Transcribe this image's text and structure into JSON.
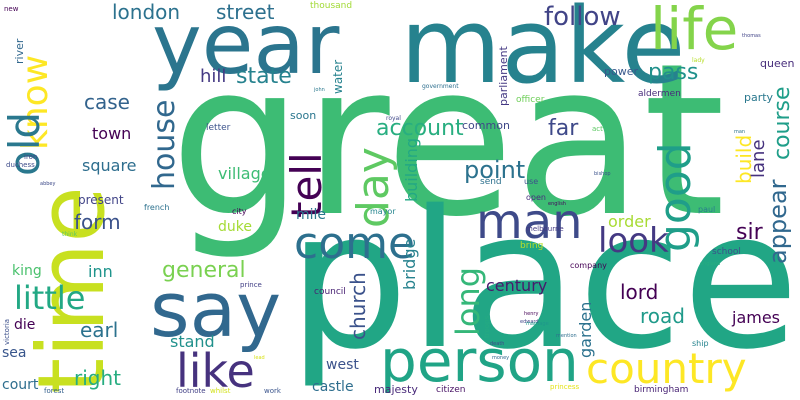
{
  "words": [
    {
      "text": "great",
      "color": "#3dbc74"
    },
    {
      "text": "place",
      "color": "#21a685"
    },
    {
      "text": "make",
      "color": "#26828e"
    },
    {
      "text": "year",
      "color": "#2b758e"
    },
    {
      "text": "time",
      "color": "#c8e020"
    },
    {
      "text": "say",
      "color": "#31688e"
    },
    {
      "text": "person",
      "color": "#20a486"
    },
    {
      "text": "life",
      "color": "#84d44b"
    },
    {
      "text": "country",
      "color": "#fde725"
    },
    {
      "text": "man",
      "color": "#3e4a89"
    },
    {
      "text": "like",
      "color": "#46327e"
    },
    {
      "text": "day",
      "color": "#5ec962"
    },
    {
      "text": "come",
      "color": "#2d708e"
    },
    {
      "text": "tell",
      "color": "#440154"
    },
    {
      "text": "good",
      "color": "#1f9e89"
    },
    {
      "text": "know",
      "color": "#fde725"
    },
    {
      "text": "old",
      "color": "#2a788e"
    },
    {
      "text": "little",
      "color": "#22a884"
    },
    {
      "text": "house",
      "color": "#31688e"
    },
    {
      "text": "look",
      "color": "#443983"
    },
    {
      "text": "long",
      "color": "#35b779"
    },
    {
      "text": "follow",
      "color": "#414487"
    },
    {
      "text": "account",
      "color": "#28ae80"
    },
    {
      "text": "general",
      "color": "#7ad151"
    },
    {
      "text": "point",
      "color": "#2c728e"
    },
    {
      "text": "right",
      "color": "#27ad81"
    },
    {
      "text": "appear",
      "color": "#31688e"
    },
    {
      "text": "course",
      "color": "#1f9e89"
    },
    {
      "text": "pass",
      "color": "#21918c"
    },
    {
      "text": "state",
      "color": "#26828e"
    },
    {
      "text": "church",
      "color": "#3b528b"
    },
    {
      "text": "road",
      "color": "#1f9a8a"
    },
    {
      "text": "sir",
      "color": "#440154"
    },
    {
      "text": "london",
      "color": "#2c728e"
    },
    {
      "text": "street",
      "color": "#2d708e"
    },
    {
      "text": "case",
      "color": "#33638d"
    },
    {
      "text": "far",
      "color": "#3e4989"
    },
    {
      "text": "build",
      "color": "#fde725"
    },
    {
      "text": "form",
      "color": "#3b528b"
    },
    {
      "text": "lord",
      "color": "#440154"
    },
    {
      "text": "earl",
      "color": "#2c728e"
    },
    {
      "text": "lane",
      "color": "#46327e"
    },
    {
      "text": "hill",
      "color": "#443983"
    },
    {
      "text": "town",
      "color": "#440154"
    },
    {
      "text": "square",
      "color": "#2e6e8e"
    },
    {
      "text": "village",
      "color": "#3dbc74"
    },
    {
      "text": "building",
      "color": "#22a884"
    },
    {
      "text": "bridge",
      "color": "#26828e"
    },
    {
      "text": "inn",
      "color": "#1f948c"
    },
    {
      "text": "james",
      "color": "#440154"
    },
    {
      "text": "century",
      "color": "#481a6c"
    },
    {
      "text": "garden",
      "color": "#2c728e"
    },
    {
      "text": "order",
      "color": "#a8db34"
    },
    {
      "text": "stand",
      "color": "#21918c"
    },
    {
      "text": "mile",
      "color": "#2a788e"
    },
    {
      "text": "king",
      "color": "#4ac16d"
    },
    {
      "text": "die",
      "color": "#440154"
    },
    {
      "text": "castle",
      "color": "#2e6e8e"
    },
    {
      "text": "west",
      "color": "#3b528b"
    },
    {
      "text": "water",
      "color": "#26828e"
    },
    {
      "text": "duke",
      "color": "#a5db36"
    },
    {
      "text": "sea",
      "color": "#39568c"
    },
    {
      "text": "court",
      "color": "#2e6e8e"
    },
    {
      "text": "common",
      "color": "#3f4788"
    },
    {
      "text": "parliament",
      "color": "#443983"
    },
    {
      "text": "present",
      "color": "#414487"
    },
    {
      "text": "queen",
      "color": "#472d7b"
    },
    {
      "text": "party",
      "color": "#2a788e"
    },
    {
      "text": "power",
      "color": "#38588c"
    },
    {
      "text": "soon",
      "color": "#2a768e"
    },
    {
      "text": "majesty",
      "color": "#482979"
    },
    {
      "text": "river",
      "color": "#30678d"
    },
    {
      "text": "thousand",
      "color": "#a2da37"
    },
    {
      "text": "aldermen",
      "color": "#472c7a"
    },
    {
      "text": "council",
      "color": "#482173"
    },
    {
      "text": "birmingham",
      "color": "#482374"
    },
    {
      "text": "citizen",
      "color": "#471164"
    },
    {
      "text": "bring",
      "color": "#bade28"
    },
    {
      "text": "school",
      "color": "#3b518b"
    },
    {
      "text": "officer",
      "color": "#6ece58"
    },
    {
      "text": "letter",
      "color": "#3b528b"
    },
    {
      "text": "send",
      "color": "#2d718e"
    },
    {
      "text": "use",
      "color": "#3c508b"
    },
    {
      "text": "open",
      "color": "#472f7d"
    },
    {
      "text": "mayor",
      "color": "#25858e"
    },
    {
      "text": "city",
      "color": "#440154"
    },
    {
      "text": "company",
      "color": "#440154"
    },
    {
      "text": "melbourne",
      "color": "#443a83"
    },
    {
      "text": "paul",
      "color": "#287d8e"
    },
    {
      "text": "prince",
      "color": "#424086"
    },
    {
      "text": "footnote",
      "color": "#424086"
    },
    {
      "text": "work",
      "color": "#3a548c"
    },
    {
      "text": "forest",
      "color": "#34608d"
    },
    {
      "text": "whilst",
      "color": "#d2e21b"
    },
    {
      "text": "ship",
      "color": "#25838e"
    },
    {
      "text": "princess",
      "color": "#e4e419"
    },
    {
      "text": "iron",
      "color": "#414487"
    },
    {
      "text": "duchess",
      "color": "#3e4c8a"
    },
    {
      "text": "french",
      "color": "#2c718e"
    },
    {
      "text": "new",
      "color": "#440154"
    },
    {
      "text": "victoria",
      "color": "#3c508b"
    },
    {
      "text": "troops",
      "color": "#25ab82"
    },
    {
      "text": "government",
      "color": "#2e6f8e"
    },
    {
      "text": "lady",
      "color": "#b8de29"
    },
    {
      "text": "royal",
      "color": "#3f4889"
    },
    {
      "text": "act",
      "color": "#5cc863"
    },
    {
      "text": "think",
      "color": "#5cc863"
    },
    {
      "text": "thomas",
      "color": "#414487"
    },
    {
      "text": "john",
      "color": "#2a788e"
    },
    {
      "text": "henry",
      "color": "#440154"
    },
    {
      "text": "abbey",
      "color": "#3e4a89"
    },
    {
      "text": "england",
      "color": "#27ad81"
    },
    {
      "text": "bishop",
      "color": "#3b528b"
    },
    {
      "text": "english",
      "color": "#46085c"
    },
    {
      "text": "mention",
      "color": "#2e6e8e"
    },
    {
      "text": "edward",
      "color": "#404588"
    },
    {
      "text": "marriage",
      "color": "#1f988b"
    },
    {
      "text": "death",
      "color": "#3e4989"
    },
    {
      "text": "money",
      "color": "#31688e"
    },
    {
      "text": "lead",
      "color": "#d8e219"
    },
    {
      "text": "man",
      "color": "#2c738e"
    }
  ]
}
